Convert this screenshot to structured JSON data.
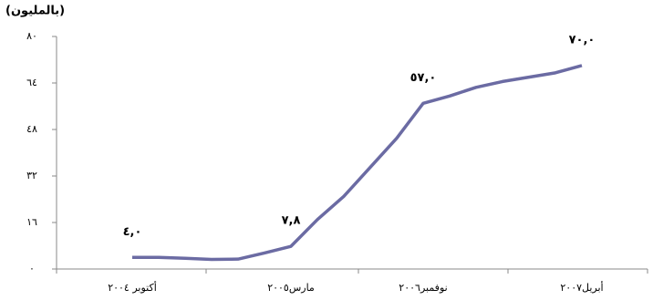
{
  "chart_data": {
    "type": "line",
    "unit_label": "(بالمليون)",
    "categories": [
      "أكتوبر ٢٠٠٤",
      null,
      null,
      null,
      null,
      null,
      "مارس٢٠٠٥",
      null,
      null,
      null,
      null,
      "نوفمبر٢٠٠٦",
      null,
      null,
      null,
      null,
      null,
      "أبريل٢٠٠٧"
    ],
    "series": [
      {
        "name": null,
        "color": "#6b6ba3",
        "values": [
          4.0,
          4.0,
          3.7,
          3.3,
          3.4,
          5.5,
          7.8,
          17,
          25,
          35,
          45,
          57.0,
          59.5,
          62.5,
          64.5,
          66,
          67.5,
          70.0
        ],
        "value_labels": [
          "٤,٠",
          null,
          null,
          null,
          null,
          null,
          "٧,٨",
          null,
          null,
          null,
          null,
          "٥٧,٠",
          null,
          null,
          null,
          null,
          null,
          "٧٠,٠"
        ]
      }
    ],
    "ylim": [
      0,
      80
    ],
    "yticks": [
      {
        "value": 0,
        "label": "٠"
      },
      {
        "value": 16,
        "label": "١٦"
      },
      {
        "value": 32,
        "label": "٣٢"
      },
      {
        "value": 48,
        "label": "٤٨"
      },
      {
        "value": 64,
        "label": "٦٤"
      },
      {
        "value": 80,
        "label": "٨٠"
      }
    ],
    "grid": false
  }
}
